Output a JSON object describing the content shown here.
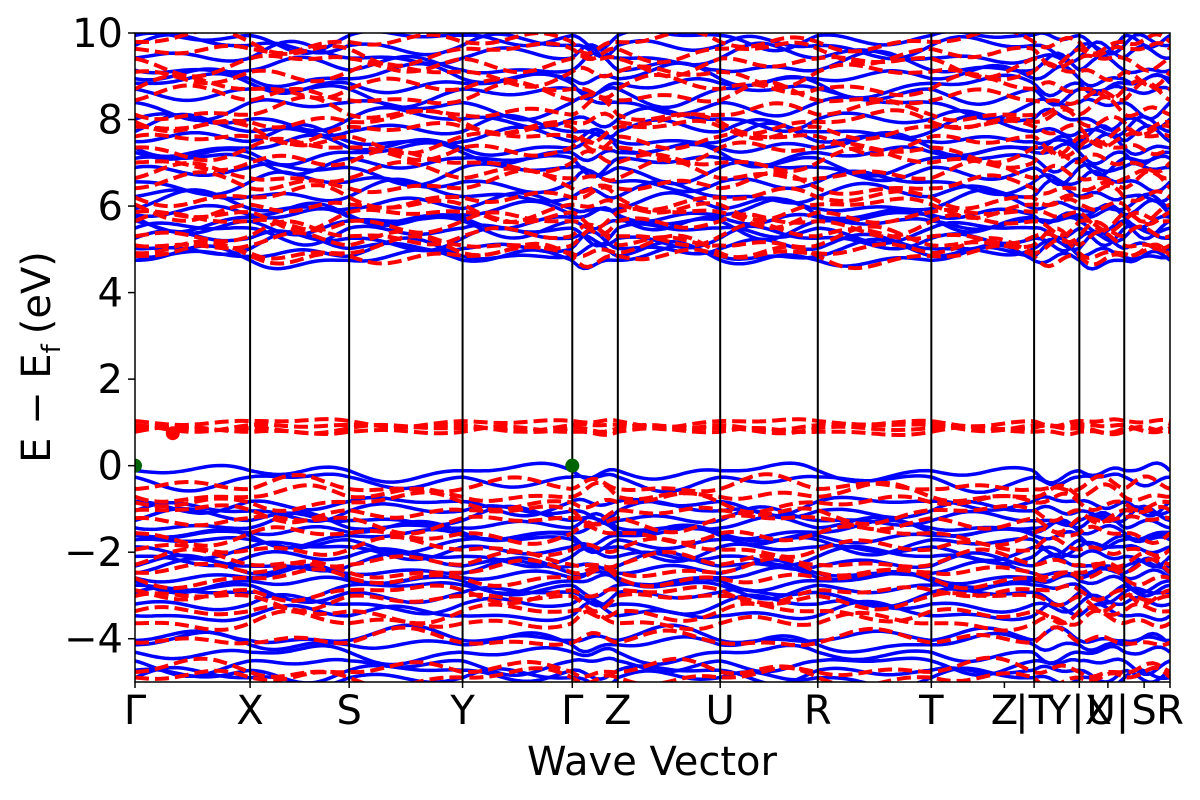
{
  "chart_data": {
    "type": "line",
    "xlabel": "Wave Vector",
    "ylabel": "E − E",
    "ylabel_subscript": "f",
    "ylabel_unit": "(eV)",
    "ylim": [
      -5,
      10
    ],
    "yticks": [
      -4,
      -2,
      0,
      2,
      4,
      6,
      8,
      10
    ],
    "ytick_labels": [
      "−4",
      "−2",
      "0",
      "2",
      "4",
      "6",
      "8",
      "10"
    ],
    "xlim": [
      0,
      1
    ],
    "kpoint_labels": [
      "Γ",
      "X",
      "S",
      "Y",
      "Γ",
      "Z",
      "U",
      "R",
      "T",
      "Z",
      "|T",
      "Y|X",
      "U|",
      "S",
      "R"
    ],
    "kpoint_positions": [
      0,
      0.1112,
      0.2069,
      0.3165,
      0.4225,
      0.4665,
      0.5654,
      0.6597,
      0.7694,
      0.8687,
      0.8687,
      0.9124,
      0.9124,
      0.9558,
      0.9558,
      1.0
    ],
    "label_anchor_positions": [
      0,
      0.1112,
      0.2069,
      0.3165,
      0.4225,
      0.4665,
      0.5654,
      0.6597,
      0.7694,
      0.84,
      0.8687,
      0.9124,
      0.94,
      0.975,
      1.0
    ],
    "grid": false,
    "series": [
      {
        "style": "solid",
        "color": "#0000ff",
        "bands": [
          -4.9,
          -4.8,
          -4.6,
          -4.35,
          -4.1,
          -3.95,
          -3.4,
          -3.2,
          -3.0,
          -2.85,
          -2.7,
          -2.55,
          -2.4,
          -2.25,
          -2.1,
          -1.95,
          -1.8,
          -1.65,
          -1.5,
          -1.35,
          -1.2,
          -1.05,
          -0.9,
          -0.35,
          -0.15,
          4.8,
          4.95,
          5.1,
          5.25,
          5.4,
          5.55,
          5.7,
          5.85,
          6.05,
          6.3,
          6.55,
          6.8,
          7.0,
          7.2,
          7.4,
          7.6,
          7.8,
          8.0,
          8.3,
          8.6,
          8.8,
          9.0,
          9.25,
          9.5,
          9.7,
          9.85
        ]
      },
      {
        "style": "dashed",
        "color": "#ff0000",
        "bands": [
          -4.9,
          -4.7,
          -4.0,
          -3.6,
          -3.4,
          -3.1,
          -2.95,
          -2.6,
          -2.4,
          -2.2,
          -1.9,
          -1.6,
          -1.3,
          -1.1,
          -0.85,
          -0.65,
          -0.45,
          0.8,
          0.85,
          0.9,
          1.0,
          4.85,
          5.0,
          5.2,
          5.35,
          5.6,
          5.75,
          5.95,
          6.2,
          6.5,
          6.75,
          7.05,
          7.3,
          7.5,
          7.75,
          7.95,
          8.2,
          8.55,
          8.75,
          9.05,
          9.3,
          9.55,
          9.8
        ]
      }
    ],
    "markers": [
      {
        "x": 0.0,
        "y": 0.0,
        "color": "#006400"
      },
      {
        "x": 0.4225,
        "y": 0.0,
        "color": "#006400"
      },
      {
        "x": 0.0365,
        "y": 0.75,
        "color": "#ff0000"
      }
    ]
  }
}
